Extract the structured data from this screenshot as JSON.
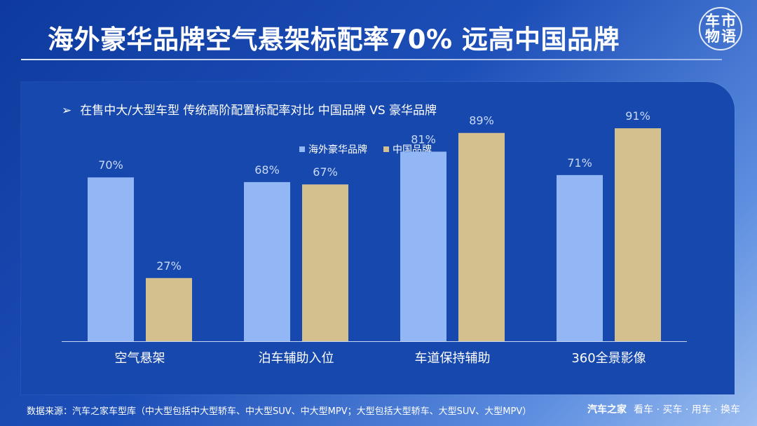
{
  "header": {
    "title": "海外豪华品牌空气悬架标配率70% 远高中国品牌",
    "logo_chars": [
      "车",
      "市",
      "物",
      "语"
    ]
  },
  "subtitle": {
    "arrow": "➢",
    "text": "在售中大/大型车型 传统高阶配置标配率对比 中国品牌 VS 豪华品牌"
  },
  "chart_data": {
    "type": "bar",
    "categories": [
      "空气悬架",
      "泊车辅助入位",
      "车道保持辅助",
      "360全景影像"
    ],
    "series": [
      {
        "name": "海外豪华品牌",
        "values": [
          70,
          68,
          81,
          71
        ],
        "labels": [
          "70%",
          "68%",
          "81%",
          "71%"
        ],
        "color": "#93b6f4"
      },
      {
        "name": "中国品牌",
        "values": [
          27,
          67,
          89,
          91
        ],
        "labels": [
          "27%",
          "67%",
          "89%",
          "91%"
        ],
        "color": "#d4bf8f"
      }
    ],
    "ylim": [
      0,
      100
    ],
    "grid": false,
    "legend_position": "top-center",
    "label_color": "#c9daf8"
  },
  "footer": {
    "source": "数据来源：汽车之家车型库（中大型包括中大型轿车、中大型SUV、中大型MPV；大型包括大型轿车、大型SUV、大型MPV）",
    "brand_name": "汽车之家",
    "brand_slogan": "看车 · 买车 · 用车 · 换车"
  }
}
